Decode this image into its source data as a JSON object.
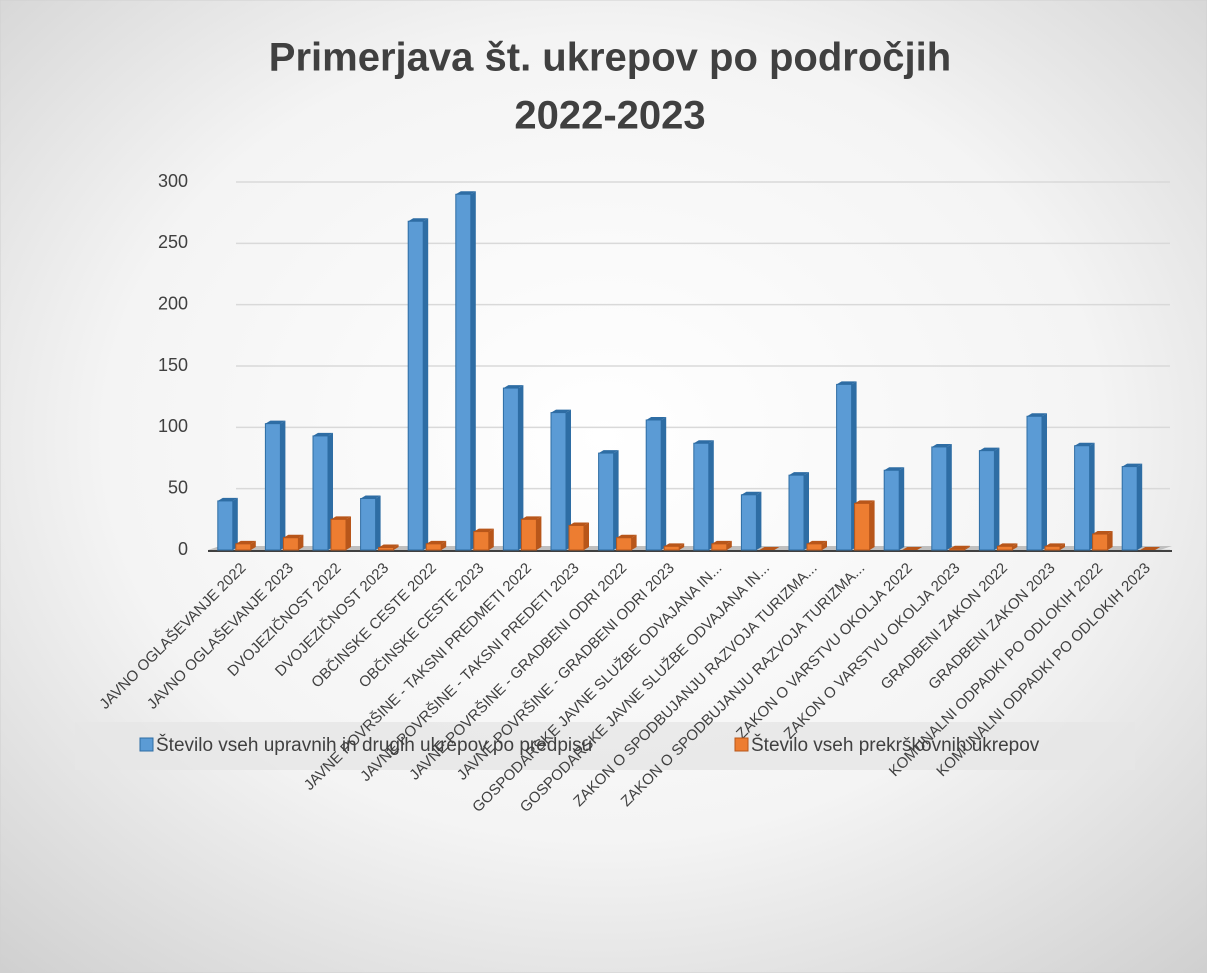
{
  "chart_data": {
    "type": "bar3d",
    "title": "Primerjava št. ukrepov po področjih",
    "subtitle": "2022-2023",
    "categories": [
      "JAVNO OGLAŠEVANJE 2022",
      "JAVNO OGLAŠEVANJE 2023",
      "DVOJEZIČNOST 2022",
      "DVOJEZIČNOST 2023",
      "OBČINSKE CESTE 2022",
      "OBČINSKE CESTE 2023",
      "JAVNE POVRŠINE - TAKSNI PREDMETI 2022",
      "JAVNE POVRŠINE - TAKSNI PREDETI 2023",
      "JAVNE POVRŠINE - GRADBENI ODRI 2022",
      "JAVNE POVRŠINE - GRADBENI ODRI 2023",
      "GOSPODARSKE JAVNE SLUŽBE ODVAJANA IN...",
      "GOSPODARSKE JAVNE SLUŽBE ODVAJANA IN...",
      "ZAKON O SPODBUJANJU RAZVOJA TURIZMA...",
      "ZAKON O SPODBUJANJU RAZVOJA TURIZMA...",
      "ZAKON O VARSTVU OKOLJA 2022",
      "ZAKON O VARSTVU OKOLJA 2023",
      "GRADBENI ZAKON 2022",
      "GRADBENI ZAKON 2023",
      "KOMUNALNI ODPADKI PO ODLOKIH 2022",
      "KOMUNALNI ODPADKI PO ODLOKIH 2023"
    ],
    "series": [
      {
        "name": "Število vseh upravnih in drugih ukrepov po predpisu",
        "color": "#5b9bd5",
        "values": [
          40,
          103,
          93,
          42,
          268,
          290,
          132,
          112,
          79,
          106,
          87,
          45,
          61,
          135,
          65,
          84,
          81,
          109,
          85,
          68
        ]
      },
      {
        "name": "Število vseh prekrškovnih ukrepov",
        "color": "#ed7d31",
        "values": [
          5,
          10,
          25,
          2,
          5,
          15,
          25,
          20,
          10,
          3,
          5,
          0,
          5,
          38,
          0,
          1,
          3,
          3,
          13,
          0
        ]
      }
    ],
    "ylim": [
      0,
      300
    ],
    "yticks": [
      0,
      50,
      100,
      150,
      200,
      250,
      300
    ],
    "grid": true,
    "legend": "bottom"
  }
}
